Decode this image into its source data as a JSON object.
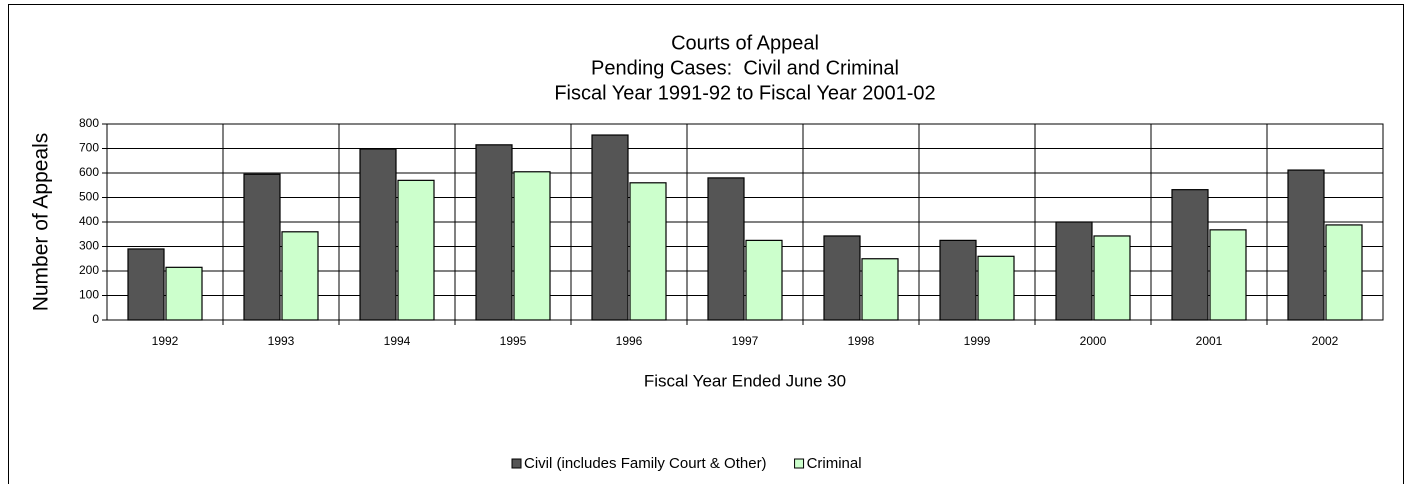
{
  "chart_data": {
    "type": "bar",
    "title": [
      "Courts of Appeal",
      "Pending Cases:  Civil and Criminal",
      "Fiscal Year 1991-92 to Fiscal Year 2001-02"
    ],
    "x_label": "Fiscal Year Ended June 30",
    "y_label": "Number of Appeals",
    "categories": [
      "1992",
      "1993",
      "1994",
      "1995",
      "1996",
      "1997",
      "1998",
      "1999",
      "2000",
      "2001",
      "2002"
    ],
    "series": [
      {
        "name": "Civil (includes Family Court & Other)",
        "color": "#555555",
        "values": [
          290,
          595,
          698,
          715,
          755,
          580,
          343,
          325,
          400,
          532,
          612
        ]
      },
      {
        "name": "Criminal",
        "color": "#ccffcc",
        "values": [
          215,
          360,
          570,
          605,
          560,
          325,
          250,
          260,
          343,
          368,
          388
        ]
      }
    ],
    "ylim": [
      0,
      800
    ],
    "yticks": [
      0,
      100,
      200,
      300,
      400,
      500,
      600,
      700,
      800
    ],
    "grid": true
  }
}
